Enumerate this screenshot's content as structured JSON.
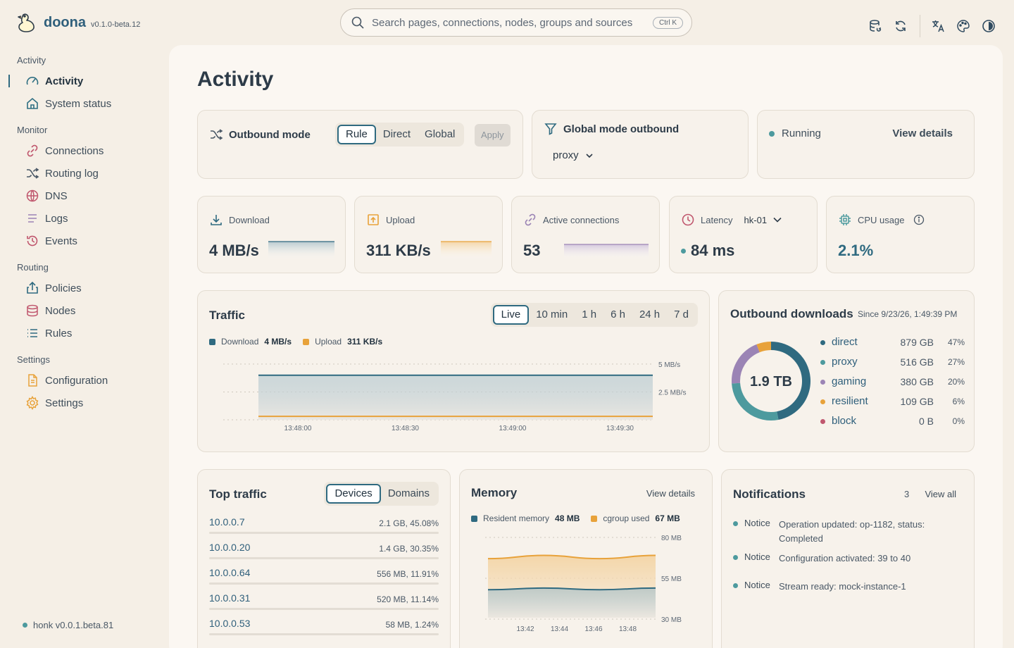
{
  "app": {
    "name": "doona",
    "version": "v0.1.0-beta.12"
  },
  "search": {
    "placeholder": "Search pages, connections, nodes, groups and sources",
    "shortcut": "Ctrl K"
  },
  "sidebar": {
    "sections": [
      {
        "title": "Activity",
        "items": [
          {
            "label": "Activity",
            "icon": "gauge-icon",
            "active": true
          },
          {
            "label": "System status",
            "icon": "home-icon"
          }
        ]
      },
      {
        "title": "Monitor",
        "items": [
          {
            "label": "Connections",
            "icon": "link-icon"
          },
          {
            "label": "Routing log",
            "icon": "shuffle-icon"
          },
          {
            "label": "DNS",
            "icon": "globe-icon"
          },
          {
            "label": "Logs",
            "icon": "list-icon"
          },
          {
            "label": "Events",
            "icon": "history-icon"
          }
        ]
      },
      {
        "title": "Routing",
        "items": [
          {
            "label": "Policies",
            "icon": "share-icon"
          },
          {
            "label": "Nodes",
            "icon": "database-icon"
          },
          {
            "label": "Rules",
            "icon": "bullet-list-icon"
          }
        ]
      },
      {
        "title": "Settings",
        "items": [
          {
            "label": "Configuration",
            "icon": "file-icon"
          },
          {
            "label": "Settings",
            "icon": "gear-icon"
          }
        ]
      }
    ],
    "footer": "honk v0.0.1.beta.81"
  },
  "page": {
    "title": "Activity"
  },
  "outbound": {
    "title": "Outbound mode",
    "modes": [
      "Rule",
      "Direct",
      "Global"
    ],
    "selected": "Rule",
    "apply": "Apply"
  },
  "global_mode": {
    "title": "Global mode outbound",
    "value": "proxy"
  },
  "status": {
    "label": "Running",
    "link": "View details"
  },
  "metrics": {
    "download": {
      "label": "Download",
      "value": "4 MB/s"
    },
    "upload": {
      "label": "Upload",
      "value": "311 KB/s"
    },
    "connections": {
      "label": "Active connections",
      "value": "53"
    },
    "latency": {
      "label": "Latency",
      "node": "hk-01",
      "value": "84 ms"
    },
    "cpu": {
      "label": "CPU usage",
      "value": "2.1%"
    }
  },
  "traffic": {
    "title": "Traffic",
    "ranges": [
      "Live",
      "10 min",
      "1 h",
      "6 h",
      "24 h",
      "7 d"
    ],
    "selected": "Live",
    "legend": [
      {
        "name": "Download",
        "value": "4 MB/s",
        "color": "#2f6a80"
      },
      {
        "name": "Upload",
        "value": "311 KB/s",
        "color": "#e8a23a"
      }
    ]
  },
  "chart_data": [
    {
      "type": "area",
      "x": [
        "13:48:00",
        "13:48:30",
        "13:49:00",
        "13:49:30"
      ],
      "ytick_labels": [
        "5 MB/s",
        "2.5 MB/s"
      ],
      "ylim": [
        0,
        5.5
      ],
      "series": [
        {
          "name": "Download",
          "values": [
            4.0,
            4.0,
            4.0,
            4.0
          ]
        },
        {
          "name": "Upload",
          "values": [
            0.31,
            0.31,
            0.31,
            0.31
          ]
        }
      ]
    },
    {
      "type": "pie",
      "title": "Outbound downloads",
      "center_label": "1.9 TB",
      "categories": [
        "direct",
        "proxy",
        "gaming",
        "resilient",
        "block"
      ],
      "values": [
        47,
        27,
        20,
        6,
        0
      ]
    },
    {
      "type": "area",
      "x": [
        "13:42",
        "13:44",
        "13:46",
        "13:48"
      ],
      "ytick_labels": [
        "80 MB",
        "55 MB",
        "30 MB"
      ],
      "ylim": [
        30,
        80
      ],
      "series": [
        {
          "name": "Resident memory",
          "values": [
            48,
            49,
            48,
            49
          ]
        },
        {
          "name": "cgroup used",
          "values": [
            67,
            69,
            67,
            69
          ]
        }
      ]
    }
  ],
  "downloads": {
    "title": "Outbound downloads",
    "since": "Since 9/23/26, 1:49:39 PM",
    "total": "1.9 TB",
    "items": [
      {
        "name": "direct",
        "size": "879 GB",
        "pct": "47%",
        "color": "#2f6a80"
      },
      {
        "name": "proxy",
        "size": "516 GB",
        "pct": "27%",
        "color": "#4d9a9e"
      },
      {
        "name": "gaming",
        "size": "380 GB",
        "pct": "20%",
        "color": "#9b84b5"
      },
      {
        "name": "resilient",
        "size": "109 GB",
        "pct": "6%",
        "color": "#e8a23a"
      },
      {
        "name": "block",
        "size": "0 B",
        "pct": "0%",
        "color": "#c0576e"
      }
    ]
  },
  "top_traffic": {
    "title": "Top traffic",
    "tabs": [
      "Devices",
      "Domains"
    ],
    "selected": "Devices",
    "rows": [
      {
        "ip": "10.0.0.7",
        "stat": "2.1 GB, 45.08%",
        "pct": 45.08,
        "color": "#2f6a80"
      },
      {
        "ip": "10.0.0.20",
        "stat": "1.4 GB, 30.35%",
        "pct": 30.35,
        "color": "#4d9a9e"
      },
      {
        "ip": "10.0.0.64",
        "stat": "556 MB, 11.91%",
        "pct": 11.91,
        "color": "#9b84b5"
      },
      {
        "ip": "10.0.0.31",
        "stat": "520 MB, 11.14%",
        "pct": 11.14,
        "color": "#e8a23a"
      },
      {
        "ip": "10.0.0.53",
        "stat": "58 MB, 1.24%",
        "pct": 1.24,
        "color": "#c0576e"
      }
    ]
  },
  "memory": {
    "title": "Memory",
    "link": "View details",
    "legend": [
      {
        "name": "Resident memory",
        "value": "48 MB",
        "color": "#2f6a80"
      },
      {
        "name": "cgroup used",
        "value": "67 MB",
        "color": "#e8a23a"
      }
    ]
  },
  "notifications": {
    "title": "Notifications",
    "count": "3",
    "link": "View all",
    "items": [
      {
        "tag": "Notice",
        "msg": "Operation updated: op-1182, status: Completed"
      },
      {
        "tag": "Notice",
        "msg": "Configuration activated: 39 to 40"
      },
      {
        "tag": "Notice",
        "msg": "Stream ready: mock-instance-1"
      }
    ]
  }
}
